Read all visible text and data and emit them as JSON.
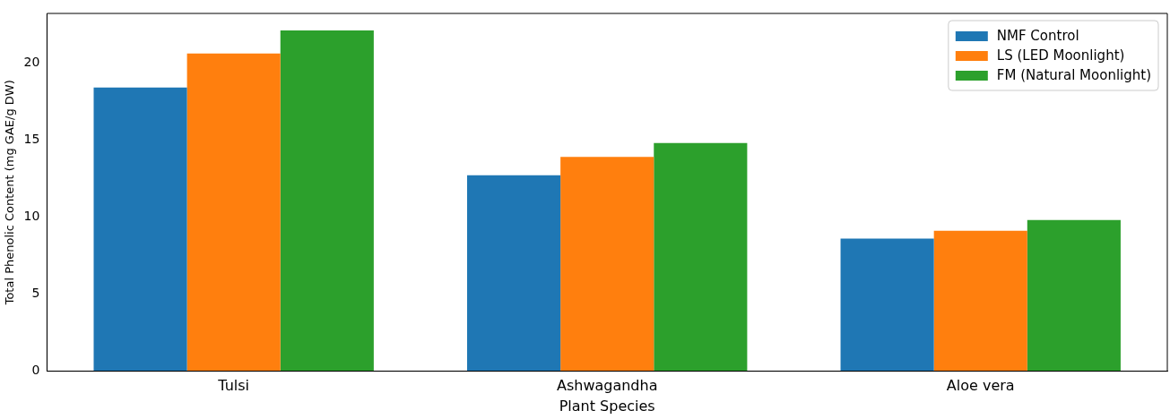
{
  "chart_data": {
    "type": "bar",
    "xlabel": "Plant Species",
    "ylabel": "Total Phenolic Content (mg GAE/g DW)",
    "categories": [
      "Tulsi",
      "Ashwagandha",
      "Aloe vera"
    ],
    "series": [
      {
        "name": "NMF Control",
        "color": "#1f77b4",
        "values": [
          18.4,
          12.7,
          8.6
        ]
      },
      {
        "name": "LS (LED Moonlight)",
        "color": "#ff7f0e",
        "values": [
          20.6,
          13.9,
          9.1
        ]
      },
      {
        "name": "FM (Natural Moonlight)",
        "color": "#2ca02c",
        "values": [
          22.1,
          14.8,
          9.8
        ]
      }
    ],
    "ylim": [
      0,
      23.2
    ],
    "yticks": [
      0,
      5,
      10,
      15,
      20
    ],
    "grid": false,
    "legend": "top right"
  }
}
